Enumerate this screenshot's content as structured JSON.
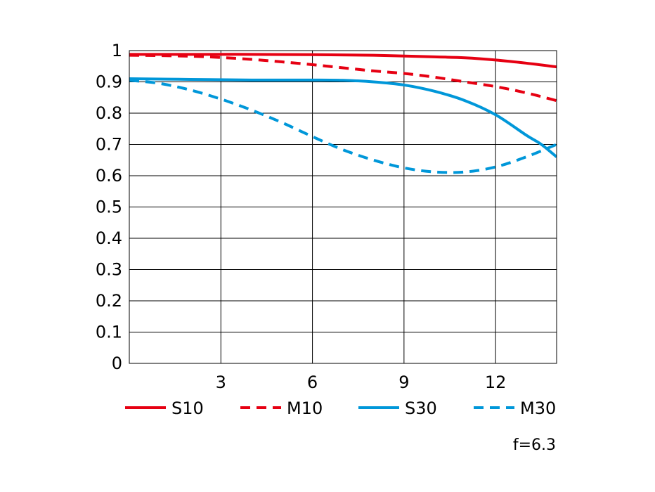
{
  "chart_data": {
    "type": "line",
    "title": "",
    "xlabel": "",
    "ylabel": "",
    "xlim": [
      0,
      14
    ],
    "ylim": [
      0,
      1
    ],
    "grid": true,
    "legend_position": "bottom",
    "x_ticks": [
      3,
      6,
      9,
      12
    ],
    "x_tick_labels": [
      "3",
      "6",
      "9",
      "12"
    ],
    "y_ticks": [
      0,
      0.1,
      0.2,
      0.3,
      0.4,
      0.5,
      0.6,
      0.7,
      0.8,
      0.9,
      1
    ],
    "y_tick_labels": [
      "0",
      "0.1",
      "0.2",
      "0.3",
      "0.4",
      "0.5",
      "0.6",
      "0.7",
      "0.8",
      "0.9",
      "1"
    ],
    "series": [
      {
        "name": "S10",
        "color": "#e60012",
        "style": "solid",
        "x": [
          0,
          2,
          4,
          6,
          8,
          10,
          11,
          12,
          13,
          14
        ],
        "y": [
          0.988,
          0.988,
          0.988,
          0.987,
          0.985,
          0.98,
          0.977,
          0.97,
          0.96,
          0.948
        ]
      },
      {
        "name": "M10",
        "color": "#e60012",
        "style": "dashed",
        "x": [
          0,
          1,
          2,
          3,
          4,
          5,
          6,
          7,
          8,
          9,
          10,
          11,
          12,
          13,
          14
        ],
        "y": [
          0.985,
          0.984,
          0.982,
          0.978,
          0.972,
          0.964,
          0.955,
          0.945,
          0.935,
          0.927,
          0.915,
          0.9,
          0.885,
          0.865,
          0.84
        ]
      },
      {
        "name": "S30",
        "color": "#0097d9",
        "style": "solid",
        "x": [
          0,
          2,
          4,
          6,
          7,
          8,
          9,
          10,
          11,
          12,
          13,
          13.5,
          14
        ],
        "y": [
          0.91,
          0.908,
          0.906,
          0.906,
          0.905,
          0.9,
          0.89,
          0.87,
          0.84,
          0.795,
          0.73,
          0.7,
          0.66
        ]
      },
      {
        "name": "M30",
        "color": "#0097d9",
        "style": "dashed",
        "x": [
          0,
          1,
          2,
          3,
          4,
          5,
          6,
          7,
          8,
          9,
          10,
          11,
          12,
          13,
          14
        ],
        "y": [
          0.905,
          0.895,
          0.874,
          0.845,
          0.81,
          0.77,
          0.725,
          0.683,
          0.65,
          0.625,
          0.612,
          0.612,
          0.628,
          0.66,
          0.7
        ]
      }
    ],
    "annotation": "f=6.3"
  },
  "colors": {
    "red": "#e60012",
    "blue": "#0097d9",
    "grid": "#000000",
    "background": "#ffffff"
  }
}
